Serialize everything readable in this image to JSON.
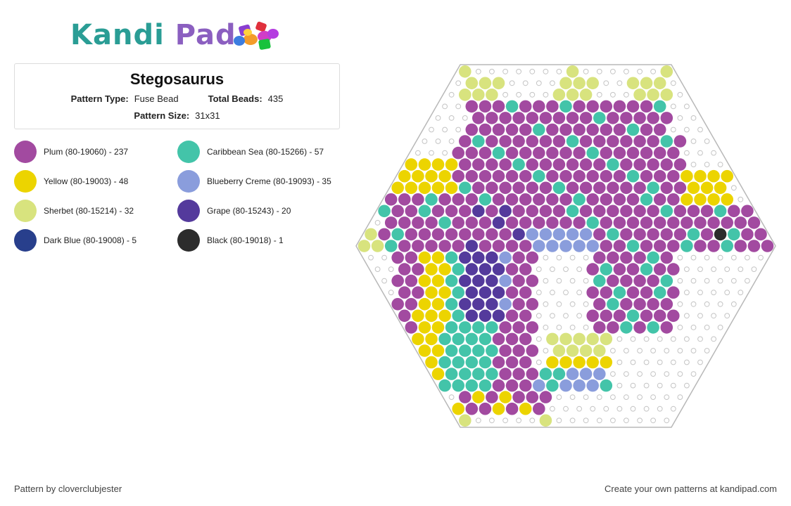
{
  "header": {
    "logo_text_part1": "Kandi",
    "logo_text_part2": "Pad",
    "logo_icon": "bead-pile-icon"
  },
  "pattern": {
    "title": "Stegosaurus",
    "type_label": "Pattern Type:",
    "type_value": "Fuse Bead",
    "beads_label": "Total Beads:",
    "beads_value": "435",
    "size_label": "Pattern Size:",
    "size_value": "31x31"
  },
  "legend": [
    {
      "label": "Plum (80-19060) - 237",
      "color": "#a24aa0"
    },
    {
      "label": "Caribbean Sea (80-15266) - 57",
      "color": "#43c4a9"
    },
    {
      "label": "Yellow (80-19003) - 48",
      "color": "#ecd400"
    },
    {
      "label": "Blueberry Creme (80-19093) - 35",
      "color": "#8a9ddc"
    },
    {
      "label": "Sherbet (80-15214) - 32",
      "color": "#d8e37e"
    },
    {
      "label": "Grape (80-15243) - 20",
      "color": "#543a9c"
    },
    {
      "label": "Dark Blue (80-19008) - 5",
      "color": "#283f8c"
    },
    {
      "label": "Black (80-19018) - 1",
      "color": "#2c2c2c"
    }
  ],
  "footer": {
    "credit": "Pattern by cloverclubjester",
    "cta": "Create your own patterns at kandipad.com"
  }
}
